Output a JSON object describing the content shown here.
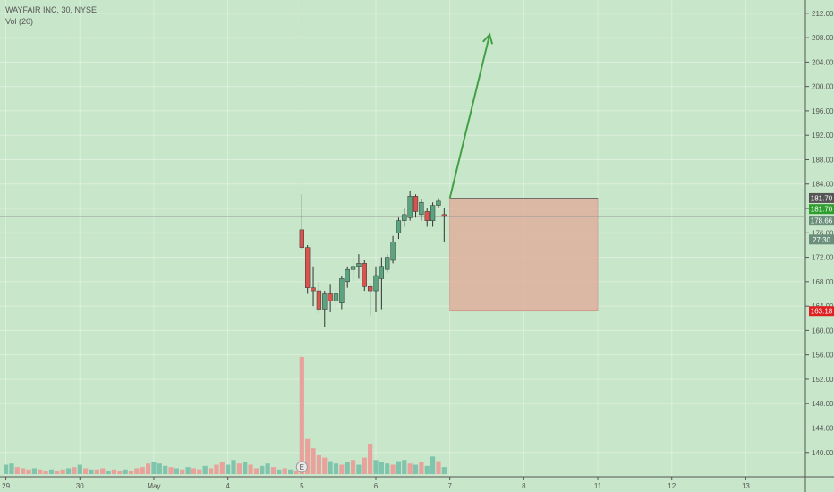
{
  "legend": {
    "symbol_line": "WAYFAIR INC, 30, NYSE",
    "volume_line": "Vol (20)"
  },
  "colors": {
    "background": "#c8e6c9",
    "up": "#5aa480",
    "down": "#d9534f",
    "vol_up": "#7fc4ad",
    "vol_down": "#e8a29b",
    "arrow": "#43a047",
    "stop_zone": "#e2a897",
    "axis_text": "#555555"
  },
  "chart_data": {
    "type": "candlestick",
    "ylim": [
      138.5,
      213
    ],
    "y_ticks": [
      140,
      144,
      148,
      152,
      156,
      160,
      164,
      168,
      172,
      176,
      180,
      184,
      188,
      192,
      196,
      200,
      204,
      208,
      212
    ],
    "y_tick_labels": [
      "140.00",
      "144.00",
      "148.00",
      "152.00",
      "156.00",
      "160.00",
      "164.00",
      "168.00",
      "172.00",
      "176.00",
      "180.00",
      "184.00",
      "188.00",
      "192.00",
      "196.00",
      "200.00",
      "204.00",
      "208.00",
      "212.00"
    ],
    "x_ticks": [
      {
        "label": "29",
        "slot": 0
      },
      {
        "label": "30",
        "slot": 13
      },
      {
        "label": "May",
        "slot": 26
      },
      {
        "label": "4",
        "slot": 39
      },
      {
        "label": "5",
        "slot": 52
      },
      {
        "label": "6",
        "slot": 65
      },
      {
        "label": "7",
        "slot": 78
      },
      {
        "label": "8",
        "slot": 91
      },
      {
        "label": "11",
        "slot": 104
      },
      {
        "label": "12",
        "slot": 117
      },
      {
        "label": "13",
        "slot": 130
      }
    ],
    "candles": [
      {
        "slot": 52,
        "o": 176.5,
        "h": 182.3,
        "l": 173.4,
        "c": 173.6
      },
      {
        "slot": 53,
        "o": 173.6,
        "h": 174.0,
        "l": 166.0,
        "c": 167.0
      },
      {
        "slot": 54,
        "o": 167.0,
        "h": 170.5,
        "l": 164.0,
        "c": 166.5
      },
      {
        "slot": 55,
        "o": 166.5,
        "h": 168.0,
        "l": 162.8,
        "c": 163.5
      },
      {
        "slot": 56,
        "o": 163.5,
        "h": 166.5,
        "l": 160.5,
        "c": 166.0
      },
      {
        "slot": 57,
        "o": 166.0,
        "h": 167.5,
        "l": 163.0,
        "c": 164.8
      },
      {
        "slot": 58,
        "o": 164.8,
        "h": 167.0,
        "l": 163.5,
        "c": 166.0
      },
      {
        "slot": 59,
        "o": 164.5,
        "h": 169.0,
        "l": 163.5,
        "c": 168.5
      },
      {
        "slot": 60,
        "o": 168.0,
        "h": 170.5,
        "l": 167.0,
        "c": 170.0
      },
      {
        "slot": 61,
        "o": 170.0,
        "h": 172.0,
        "l": 168.0,
        "c": 170.5
      },
      {
        "slot": 62,
        "o": 170.5,
        "h": 172.5,
        "l": 168.5,
        "c": 171.0
      },
      {
        "slot": 63,
        "o": 171.0,
        "h": 171.5,
        "l": 166.5,
        "c": 167.2
      },
      {
        "slot": 64,
        "o": 167.2,
        "h": 167.5,
        "l": 162.5,
        "c": 166.5
      },
      {
        "slot": 65,
        "o": 166.5,
        "h": 170.5,
        "l": 163.0,
        "c": 169.0
      },
      {
        "slot": 66,
        "o": 168.5,
        "h": 172.0,
        "l": 163.5,
        "c": 170.5
      },
      {
        "slot": 67,
        "o": 170.0,
        "h": 172.5,
        "l": 169.5,
        "c": 172.0
      },
      {
        "slot": 68,
        "o": 171.5,
        "h": 175.5,
        "l": 171.0,
        "c": 174.5
      },
      {
        "slot": 69,
        "o": 176.0,
        "h": 178.5,
        "l": 175.0,
        "c": 178.0
      },
      {
        "slot": 70,
        "o": 178.0,
        "h": 180.0,
        "l": 177.0,
        "c": 179.0
      },
      {
        "slot": 71,
        "o": 178.5,
        "h": 182.8,
        "l": 178.0,
        "c": 182.0
      },
      {
        "slot": 72,
        "o": 182.0,
        "h": 182.3,
        "l": 178.5,
        "c": 179.5
      },
      {
        "slot": 73,
        "o": 179.0,
        "h": 181.5,
        "l": 178.0,
        "c": 181.0
      },
      {
        "slot": 74,
        "o": 179.5,
        "h": 180.0,
        "l": 177.0,
        "c": 178.0
      },
      {
        "slot": 75,
        "o": 178.0,
        "h": 181.0,
        "l": 177.0,
        "c": 180.5
      },
      {
        "slot": 76,
        "o": 180.5,
        "h": 181.7,
        "l": 180.0,
        "c": 181.2
      },
      {
        "slot": 77,
        "o": 179.0,
        "h": 180.0,
        "l": 174.5,
        "c": 178.7
      }
    ],
    "volume": {
      "max": 100,
      "bars": [
        {
          "slot": 0,
          "v": 8,
          "up": true
        },
        {
          "slot": 1,
          "v": 9,
          "up": true
        },
        {
          "slot": 2,
          "v": 6,
          "up": false
        },
        {
          "slot": 3,
          "v": 5,
          "up": false
        },
        {
          "slot": 4,
          "v": 4,
          "up": false
        },
        {
          "slot": 5,
          "v": 5,
          "up": true
        },
        {
          "slot": 6,
          "v": 4,
          "up": false
        },
        {
          "slot": 7,
          "v": 3,
          "up": false
        },
        {
          "slot": 8,
          "v": 4,
          "up": true
        },
        {
          "slot": 9,
          "v": 3,
          "up": false
        },
        {
          "slot": 10,
          "v": 4,
          "up": false
        },
        {
          "slot": 11,
          "v": 5,
          "up": true
        },
        {
          "slot": 12,
          "v": 6,
          "up": false
        },
        {
          "slot": 13,
          "v": 8,
          "up": true
        },
        {
          "slot": 14,
          "v": 5,
          "up": false
        },
        {
          "slot": 15,
          "v": 4,
          "up": true
        },
        {
          "slot": 16,
          "v": 4,
          "up": false
        },
        {
          "slot": 17,
          "v": 5,
          "up": false
        },
        {
          "slot": 18,
          "v": 3,
          "up": true
        },
        {
          "slot": 19,
          "v": 4,
          "up": false
        },
        {
          "slot": 20,
          "v": 3,
          "up": false
        },
        {
          "slot": 21,
          "v": 4,
          "up": true
        },
        {
          "slot": 22,
          "v": 3,
          "up": false
        },
        {
          "slot": 23,
          "v": 5,
          "up": false
        },
        {
          "slot": 24,
          "v": 6,
          "up": false
        },
        {
          "slot": 25,
          "v": 9,
          "up": false
        },
        {
          "slot": 26,
          "v": 10,
          "up": true
        },
        {
          "slot": 27,
          "v": 9,
          "up": true
        },
        {
          "slot": 28,
          "v": 7,
          "up": true
        },
        {
          "slot": 29,
          "v": 6,
          "up": false
        },
        {
          "slot": 30,
          "v": 5,
          "up": true
        },
        {
          "slot": 31,
          "v": 4,
          "up": false
        },
        {
          "slot": 32,
          "v": 6,
          "up": true
        },
        {
          "slot": 33,
          "v": 5,
          "up": false
        },
        {
          "slot": 34,
          "v": 4,
          "up": false
        },
        {
          "slot": 35,
          "v": 7,
          "up": true
        },
        {
          "slot": 36,
          "v": 5,
          "up": false
        },
        {
          "slot": 37,
          "v": 8,
          "up": false
        },
        {
          "slot": 38,
          "v": 10,
          "up": false
        },
        {
          "slot": 39,
          "v": 8,
          "up": true
        },
        {
          "slot": 40,
          "v": 12,
          "up": true
        },
        {
          "slot": 41,
          "v": 9,
          "up": false
        },
        {
          "slot": 42,
          "v": 10,
          "up": true
        },
        {
          "slot": 43,
          "v": 8,
          "up": false
        },
        {
          "slot": 44,
          "v": 5,
          "up": false
        },
        {
          "slot": 45,
          "v": 7,
          "up": true
        },
        {
          "slot": 46,
          "v": 9,
          "up": true
        },
        {
          "slot": 47,
          "v": 6,
          "up": false
        },
        {
          "slot": 48,
          "v": 4,
          "up": true
        },
        {
          "slot": 49,
          "v": 5,
          "up": false
        },
        {
          "slot": 50,
          "v": 4,
          "up": true
        },
        {
          "slot": 51,
          "v": 3,
          "up": false
        },
        {
          "slot": 52,
          "v": 100,
          "up": false
        },
        {
          "slot": 53,
          "v": 30,
          "up": false
        },
        {
          "slot": 54,
          "v": 22,
          "up": false
        },
        {
          "slot": 55,
          "v": 16,
          "up": false
        },
        {
          "slot": 56,
          "v": 14,
          "up": false
        },
        {
          "slot": 57,
          "v": 11,
          "up": true
        },
        {
          "slot": 58,
          "v": 9,
          "up": true
        },
        {
          "slot": 59,
          "v": 8,
          "up": false
        },
        {
          "slot": 60,
          "v": 10,
          "up": true
        },
        {
          "slot": 61,
          "v": 12,
          "up": false
        },
        {
          "slot": 62,
          "v": 8,
          "up": true
        },
        {
          "slot": 63,
          "v": 14,
          "up": false
        },
        {
          "slot": 64,
          "v": 26,
          "up": false
        },
        {
          "slot": 65,
          "v": 12,
          "up": true
        },
        {
          "slot": 66,
          "v": 10,
          "up": true
        },
        {
          "slot": 67,
          "v": 9,
          "up": true
        },
        {
          "slot": 68,
          "v": 8,
          "up": false
        },
        {
          "slot": 69,
          "v": 11,
          "up": true
        },
        {
          "slot": 70,
          "v": 12,
          "up": true
        },
        {
          "slot": 71,
          "v": 9,
          "up": false
        },
        {
          "slot": 72,
          "v": 8,
          "up": true
        },
        {
          "slot": 73,
          "v": 10,
          "up": false
        },
        {
          "slot": 74,
          "v": 7,
          "up": true
        },
        {
          "slot": 75,
          "v": 15,
          "up": true
        },
        {
          "slot": 76,
          "v": 11,
          "up": false
        },
        {
          "slot": 77,
          "v": 6,
          "up": true
        }
      ]
    },
    "crosshair": {
      "slot": 52,
      "price": 178.66
    },
    "price_labels": [
      {
        "text": "181.70",
        "price": 181.7,
        "color": "#555555"
      },
      {
        "text": "181.70",
        "price": 179.9,
        "color": "#2e9e2e"
      },
      {
        "text": "178.66",
        "price": 178.0,
        "color": "#6b8f7a"
      },
      {
        "text": "27:30",
        "price": 174.9,
        "color": "#6b8f7a"
      },
      {
        "text": "163.18",
        "price": 163.18,
        "color": "#e02020"
      }
    ],
    "stop_zone": {
      "slot_from": 78,
      "slot_to": 104,
      "price_top": 181.7,
      "price_bottom": 163.18
    },
    "projection_arrow": {
      "from_slot": 78,
      "from_price": 181.7,
      "to_slot": 85,
      "to_price": 208.5
    },
    "event_marker": {
      "slot": 52,
      "label": "E"
    }
  }
}
